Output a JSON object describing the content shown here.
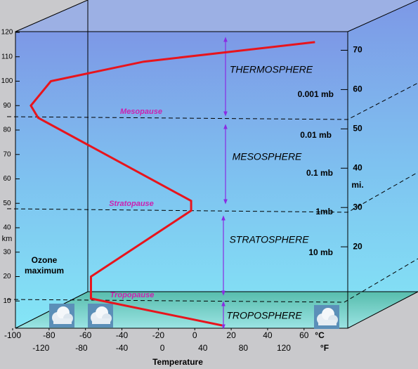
{
  "chart_data": {
    "type": "line",
    "x": [
      15,
      -57,
      -57,
      -2,
      -2,
      -86,
      -90,
      -79,
      -28,
      66
    ],
    "series": [
      {
        "color": "#e8141c",
        "values": [
          0,
          11,
          20,
          47,
          51,
          85,
          90,
          100,
          108,
          116
        ]
      }
    ],
    "xlim": [
      -100,
      84
    ],
    "xticks": [
      -100,
      -80,
      -60,
      -40,
      -20,
      0,
      20,
      40,
      60
    ],
    "xunit": "°C",
    "x2lim": [
      -148,
      183.2
    ],
    "x2ticks": [
      -120,
      -80,
      -40,
      0,
      40,
      80,
      120
    ],
    "x2unit": "°F",
    "xlabel": "Temperature",
    "ylim": [
      0,
      120
    ],
    "yticks": [
      10,
      20,
      30,
      40,
      50,
      60,
      70,
      80,
      90,
      100,
      110,
      120
    ],
    "ylabel": "km",
    "y2lim": [
      0,
      74.56
    ],
    "y2ticks": [
      20,
      30,
      40,
      50,
      60,
      70
    ],
    "y2label": "mi.",
    "layers": [
      "THERMOSPHERE",
      "MESOSPHERE",
      "STRATOSPHERE",
      "TROPOSPHERE"
    ],
    "pauses": [
      "Mesopause",
      "Stratopause",
      "Tropopause"
    ],
    "pressure_labels": [
      "0.001 mb",
      "0.01 mb",
      "0.1 mb",
      "1mb",
      "10 mb"
    ],
    "ozone_label": [
      "Ozone",
      "maximum"
    ]
  }
}
